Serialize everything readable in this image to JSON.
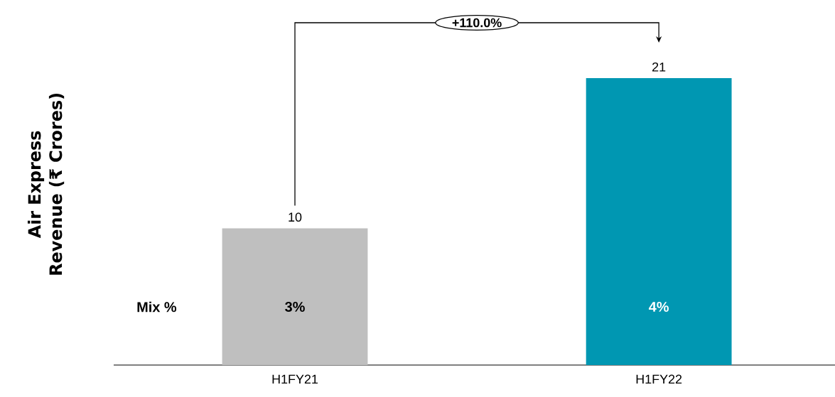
{
  "chart_data": {
    "type": "bar",
    "ylabel": "Air Express Revenue (₹ Crores)",
    "categories": [
      "H1FY21",
      "H1FY22"
    ],
    "values": [
      10,
      21
    ],
    "colors": [
      "#bfbfbf",
      "#0097b2"
    ],
    "data_labels": true,
    "annotations": [
      "+110.0%",
      "Mix %",
      "3%",
      "4%"
    ]
  }
}
